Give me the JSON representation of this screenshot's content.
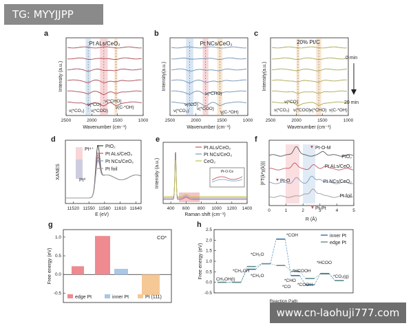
{
  "overlays": {
    "tag": "TG: MYYJJPP",
    "watermark": "www.cn-laohuji777.com"
  },
  "chart_data": [
    {
      "panel": "a",
      "type": "line",
      "title": "Pt ALs/CeO₂",
      "xlabel": "Wavenumber (cm⁻¹)",
      "ylabel": "Intensity (a.u.)",
      "xlim": [
        2500,
        1000
      ],
      "xticks": [
        2500,
        2000,
        1500,
        1000
      ],
      "line_color": "#a8464e",
      "n_traces": 6,
      "bands": [
        [
          2120,
          2020
        ],
        [
          1840,
          1690
        ],
        [
          1560,
          1500
        ]
      ],
      "annotations": [
        "ν(*CO₃)",
        "ν(*CO)",
        "ν(*COO)",
        "ν(*CHO)",
        "ν(C-*OH)"
      ]
    },
    {
      "panel": "b",
      "type": "line",
      "title": "Pt NCs/CeO₂",
      "xlabel": "Wavenumber (cm⁻¹)",
      "ylabel": "Intensity(a.u.)",
      "xlim": [
        2500,
        1000
      ],
      "xticks": [
        2500,
        2000,
        1500,
        1000
      ],
      "line_color": "#6b8fb0",
      "n_traces": 6,
      "bands": [
        [
          2190,
          2050
        ],
        [
          1870,
          1760
        ],
        [
          1590,
          1490
        ]
      ],
      "annotations": [
        "ν(*CO₂)",
        "ν(*CO)",
        "ν(*CHO)",
        "ν(*COO)",
        "ν(C-*OH)"
      ]
    },
    {
      "panel": "c",
      "type": "line",
      "title": "20% Pt/C",
      "xlabel": "Wavenumber (cm⁻¹)",
      "ylabel": "Intensity(a.u.)",
      "xlim": [
        2500,
        1000
      ],
      "xticks": [
        2500,
        2000,
        1500,
        1000
      ],
      "line_color": "#a8a650",
      "n_traces": 6,
      "bands": [
        [
          2000,
          1940
        ],
        [
          1620,
          1520
        ]
      ],
      "annotations": [
        "ν(*CO)",
        "ν(*CO₂)",
        "ν(*COO)",
        "ν(*CHO)",
        "ν(C-*OH)"
      ],
      "time_labels": [
        "0 min",
        "20 min"
      ]
    },
    {
      "panel": "d",
      "type": "line",
      "xlabel": "E (eV)",
      "ylabel": "XANES",
      "xlim": [
        11505,
        11650
      ],
      "xticks": [
        11520,
        11550,
        11580,
        11610,
        11640
      ],
      "series": [
        {
          "name": "PtO₂",
          "color": "#3a3a3a"
        },
        {
          "name": "Pt ALs/CeO₂",
          "color": "#c0555d"
        },
        {
          "name": "Pt NCs/CeO₂",
          "color": "#7a99bb"
        },
        {
          "name": "Pt foil",
          "color": "#9a9a9a"
        }
      ],
      "oxidation_labels": [
        "Pt⁴⁺",
        "Pt⁰"
      ]
    },
    {
      "panel": "e",
      "type": "line",
      "xlabel": "Raman shift (cm⁻¹)",
      "ylabel": "Intensity (a.u.)",
      "xlim": [
        300,
        1400
      ],
      "xticks": [
        400,
        600,
        800,
        1000,
        1200,
        1400
      ],
      "series": [
        {
          "name": "Pt ALs/CeO₂",
          "color": "#c0555d"
        },
        {
          "name": "Pt NCs/CeO₂",
          "color": "#7a99bb"
        },
        {
          "name": "CeO₂",
          "color": "#c2c04e"
        }
      ],
      "inset_label": "Pt-O-Ce",
      "peak_position": 462
    },
    {
      "panel": "f",
      "type": "line",
      "xlabel": "R (Å)",
      "ylabel": "|FT(k²χ(k))|",
      "xlim": [
        0,
        5
      ],
      "xticks": [
        0,
        1,
        2,
        3,
        4,
        5
      ],
      "series": [
        {
          "name": "PtO₂",
          "color": "#555555"
        },
        {
          "name": "Pt ALs/CeO₂",
          "color": "#c0555d"
        },
        {
          "name": "Pt NCs/CeO₂",
          "color": "#7a99bb"
        },
        {
          "name": "Pt foil",
          "color": "#999999"
        }
      ],
      "markers": [
        "Pt-O-M",
        "Pt-O",
        "Pt-Pt"
      ]
    },
    {
      "panel": "g",
      "type": "bar",
      "ylabel": "Free energy (eV)",
      "title": "CO*",
      "ylim": [
        -0.75,
        1.2
      ],
      "yticks": [
        -0.5,
        0.0,
        0.5,
        1.0
      ],
      "categories": [
        "edge Pt",
        "edge Pt",
        "inner Pt",
        "Pt (111)"
      ],
      "values": [
        0.22,
        1.03,
        0.15,
        -0.55
      ],
      "colors": [
        "#ee8a90",
        "#ee8a90",
        "#a9c7e6",
        "#f5c896"
      ],
      "legend": [
        "edge Pt",
        "inner Pt",
        "Pt (111)"
      ]
    },
    {
      "panel": "h",
      "type": "line",
      "xlabel": "Reaction Path",
      "ylabel": "Free energy (eV)",
      "ylim": [
        -0.5,
        2.5
      ],
      "yticks": [
        -0.5,
        0.0,
        0.5,
        1.0,
        1.5,
        2.0,
        2.5
      ],
      "series": [
        {
          "name": "inner Pt",
          "color": "#2f6fa8",
          "levels": [
            0.0,
            0.0,
            0.62,
            0.88,
            2.05,
            0.32,
            -0.12,
            0.42,
            0.08
          ]
        },
        {
          "name": "edge Pt",
          "color": "#5f8f8a",
          "levels": [
            0.0,
            0.0,
            0.75,
            0.88,
            0.8,
            0.52,
            0.18,
            0.4,
            0.08
          ]
        }
      ],
      "state_labels": [
        "CH₃OH(l)",
        "*CH₃OH",
        "*CH₂O",
        "*CH₂O",
        "*COH",
        "*CHO",
        "*HCOOH",
        "*CO",
        "*COOH",
        "*HCOO",
        "*CO₂(g)"
      ]
    }
  ]
}
